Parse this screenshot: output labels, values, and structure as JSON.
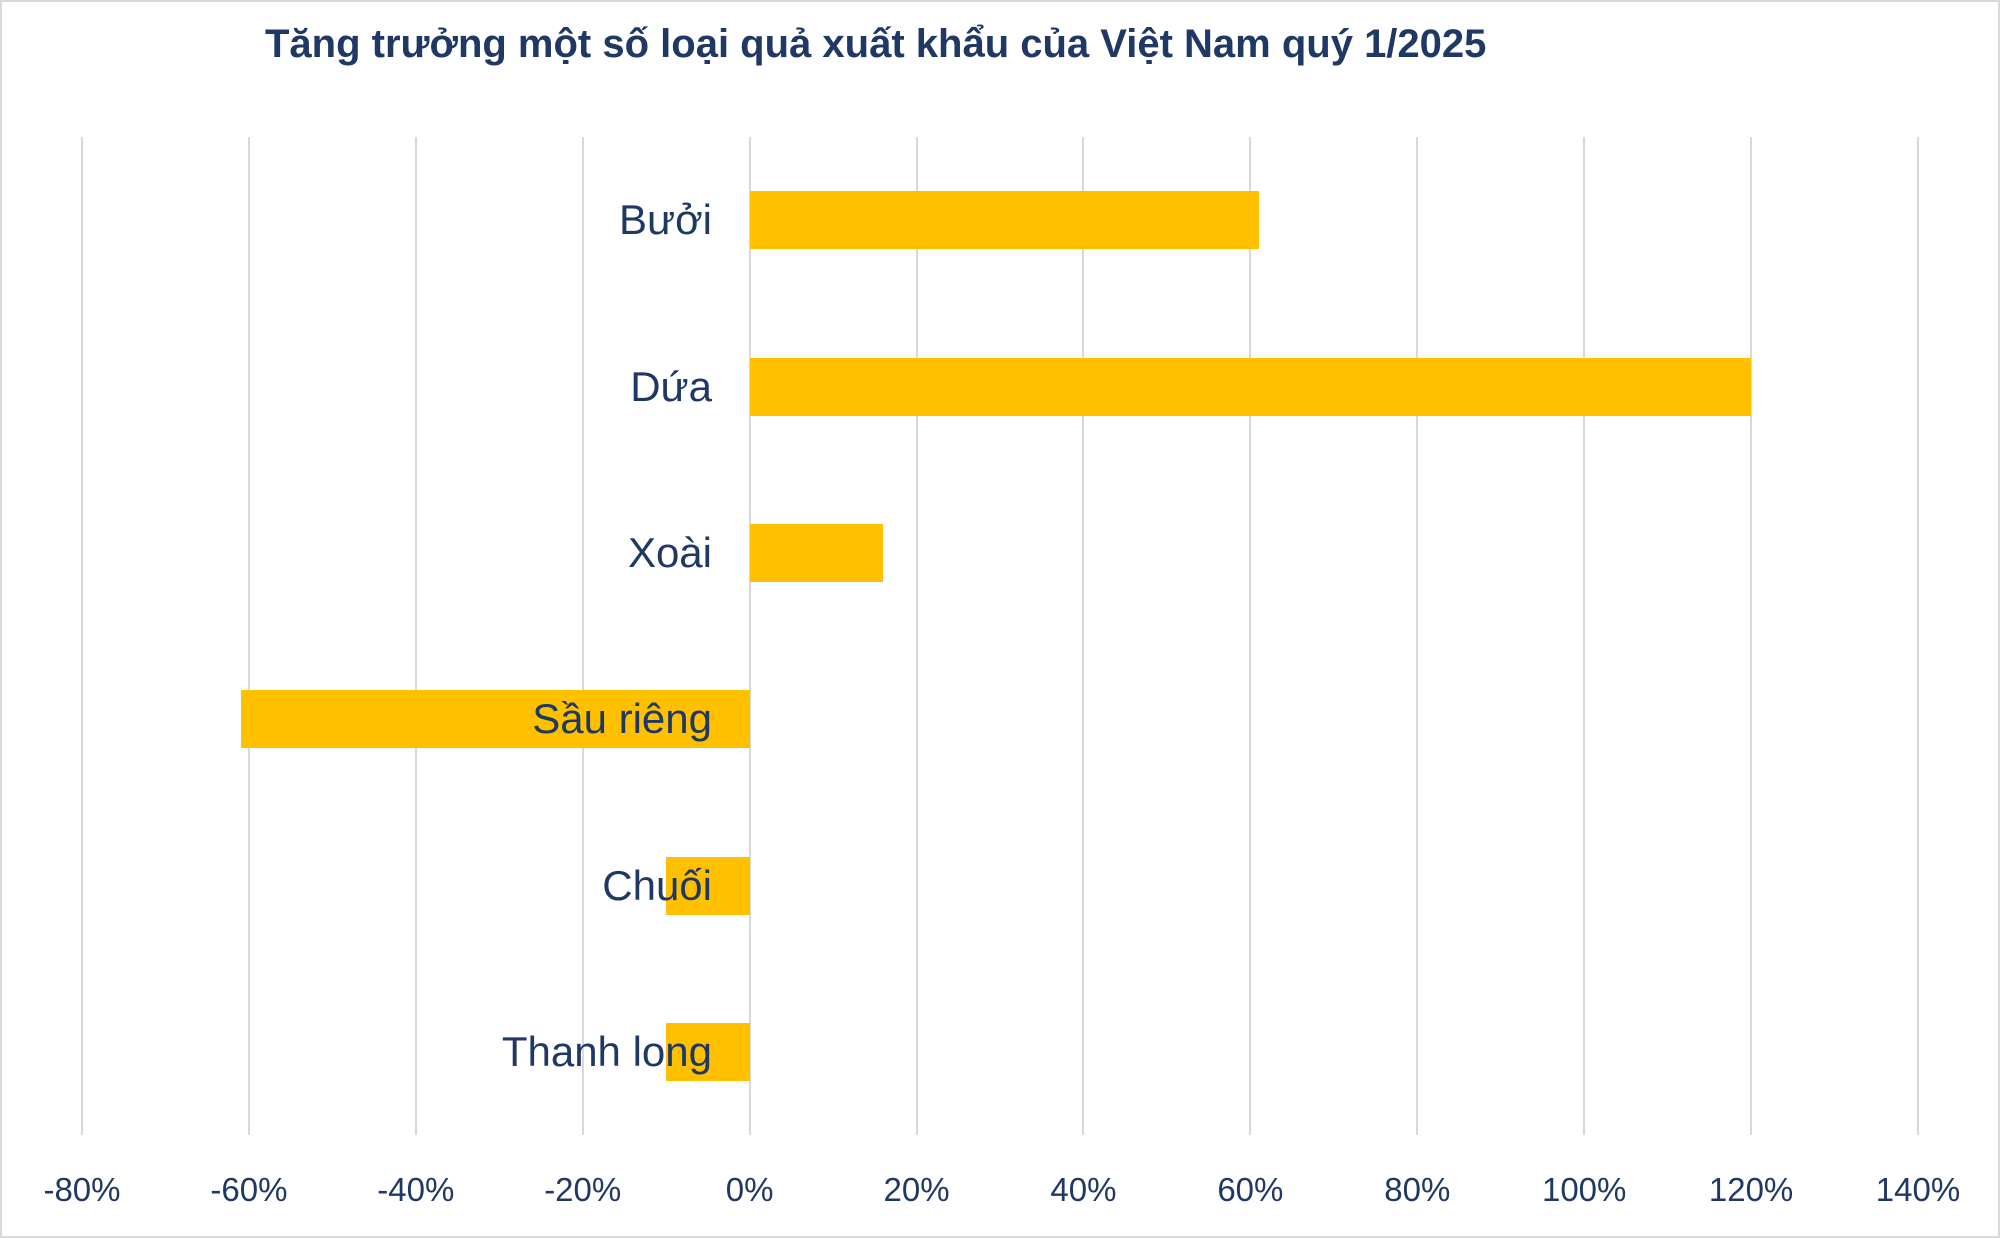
{
  "chart_data": {
    "type": "bar",
    "orientation": "horizontal",
    "title": "Tăng trưởng một số loại quả xuất khẩu của Việt Nam quý 1/2025",
    "categories": [
      "Bưởi",
      "Dứa",
      "Xoài",
      "Sầu riêng",
      "Chuối",
      "Thanh long"
    ],
    "values": [
      61,
      120,
      16,
      -61,
      -10,
      -10
    ],
    "unit": "%",
    "xlabel": "",
    "ylabel": "",
    "xlim": [
      -80,
      140
    ],
    "x_tick_step": 20,
    "x_tick_values": [
      -80,
      -60,
      -40,
      -20,
      0,
      20,
      40,
      60,
      80,
      100,
      120,
      140
    ],
    "x_tick_labels": [
      "-80%",
      "-60%",
      "-40%",
      "-20%",
      "0%",
      "20%",
      "40%",
      "60%",
      "80%",
      "100%",
      "120%",
      "140%"
    ],
    "grid": "vertical-gridlines-on",
    "legend": "none",
    "data_labels": "none",
    "colors": {
      "bar": "#FFC000",
      "text": "#1F3864",
      "gridline": "#D9D9D9",
      "background": "#FFFFFF",
      "border": "#D9D9D9"
    }
  }
}
